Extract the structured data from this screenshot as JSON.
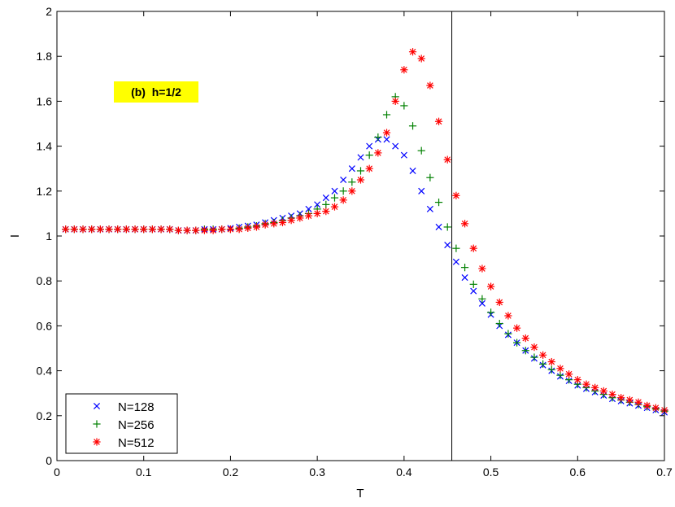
{
  "chart_data": {
    "type": "scatter",
    "title": "",
    "xlabel": "T",
    "ylabel": "I",
    "xlim": [
      0,
      0.7
    ],
    "ylim": [
      0,
      2
    ],
    "x_ticks": [
      "0",
      "0.1",
      "0.2",
      "0.3",
      "0.4",
      "0.5",
      "0.6",
      "0.7"
    ],
    "y_ticks": [
      "0",
      "0.2",
      "0.4",
      "0.6",
      "0.8",
      "1",
      "1.2",
      "1.4",
      "1.6",
      "1.8",
      "2"
    ],
    "grid": false,
    "legend_position": "bottom-left",
    "annotation": {
      "text": "(b)  h=1/2",
      "background": "#ffff00"
    },
    "vertical_line_x": 0.455,
    "series": [
      {
        "name": "N=128",
        "marker": "x",
        "color": "#0000ff",
        "x": [
          0.01,
          0.02,
          0.03,
          0.04,
          0.05,
          0.06,
          0.07,
          0.08,
          0.09,
          0.1,
          0.11,
          0.12,
          0.13,
          0.14,
          0.15,
          0.16,
          0.17,
          0.18,
          0.19,
          0.2,
          0.21,
          0.22,
          0.23,
          0.24,
          0.25,
          0.26,
          0.27,
          0.28,
          0.29,
          0.3,
          0.31,
          0.32,
          0.33,
          0.34,
          0.35,
          0.36,
          0.37,
          0.38,
          0.39,
          0.4,
          0.41,
          0.42,
          0.43,
          0.44,
          0.45,
          0.46,
          0.47,
          0.48,
          0.49,
          0.5,
          0.51,
          0.52,
          0.53,
          0.54,
          0.55,
          0.56,
          0.57,
          0.58,
          0.59,
          0.6,
          0.61,
          0.62,
          0.63,
          0.64,
          0.65,
          0.66,
          0.67,
          0.68,
          0.69,
          0.7
        ],
        "y": [
          1.03,
          1.03,
          1.03,
          1.03,
          1.03,
          1.03,
          1.03,
          1.03,
          1.03,
          1.03,
          1.03,
          1.03,
          1.03,
          1.025,
          1.025,
          1.025,
          1.03,
          1.03,
          1.03,
          1.035,
          1.04,
          1.045,
          1.05,
          1.06,
          1.07,
          1.08,
          1.09,
          1.1,
          1.12,
          1.14,
          1.17,
          1.2,
          1.25,
          1.3,
          1.35,
          1.4,
          1.43,
          1.43,
          1.4,
          1.36,
          1.29,
          1.2,
          1.12,
          1.04,
          0.96,
          0.885,
          0.815,
          0.755,
          0.7,
          0.65,
          0.6,
          0.56,
          0.525,
          0.49,
          0.455,
          0.425,
          0.4,
          0.375,
          0.355,
          0.335,
          0.32,
          0.305,
          0.29,
          0.275,
          0.265,
          0.255,
          0.245,
          0.235,
          0.225,
          0.215
        ]
      },
      {
        "name": "N=256",
        "marker": "+",
        "color": "#008000",
        "x": [
          0.01,
          0.02,
          0.03,
          0.04,
          0.05,
          0.06,
          0.07,
          0.08,
          0.09,
          0.1,
          0.11,
          0.12,
          0.13,
          0.14,
          0.15,
          0.16,
          0.17,
          0.18,
          0.19,
          0.2,
          0.21,
          0.22,
          0.23,
          0.24,
          0.25,
          0.26,
          0.27,
          0.28,
          0.29,
          0.3,
          0.31,
          0.32,
          0.33,
          0.34,
          0.35,
          0.36,
          0.37,
          0.38,
          0.39,
          0.4,
          0.41,
          0.42,
          0.43,
          0.44,
          0.45,
          0.46,
          0.47,
          0.48,
          0.49,
          0.5,
          0.51,
          0.52,
          0.53,
          0.54,
          0.55,
          0.56,
          0.57,
          0.58,
          0.59,
          0.6,
          0.61,
          0.62,
          0.63,
          0.64,
          0.65,
          0.66,
          0.67,
          0.68,
          0.69,
          0.7
        ],
        "y": [
          1.03,
          1.03,
          1.03,
          1.03,
          1.03,
          1.03,
          1.03,
          1.03,
          1.03,
          1.03,
          1.03,
          1.03,
          1.03,
          1.025,
          1.025,
          1.025,
          1.03,
          1.03,
          1.03,
          1.03,
          1.035,
          1.04,
          1.045,
          1.055,
          1.06,
          1.07,
          1.08,
          1.09,
          1.1,
          1.12,
          1.14,
          1.17,
          1.2,
          1.24,
          1.29,
          1.36,
          1.44,
          1.54,
          1.62,
          1.58,
          1.49,
          1.38,
          1.26,
          1.15,
          1.04,
          0.945,
          0.86,
          0.785,
          0.72,
          0.66,
          0.61,
          0.565,
          0.525,
          0.49,
          0.46,
          0.43,
          0.405,
          0.38,
          0.36,
          0.34,
          0.325,
          0.31,
          0.295,
          0.28,
          0.27,
          0.26,
          0.25,
          0.24,
          0.23,
          0.22
        ]
      },
      {
        "name": "N=512",
        "marker": "*",
        "color": "#ff0000",
        "x": [
          0.01,
          0.02,
          0.03,
          0.04,
          0.05,
          0.06,
          0.07,
          0.08,
          0.09,
          0.1,
          0.11,
          0.12,
          0.13,
          0.14,
          0.15,
          0.16,
          0.17,
          0.18,
          0.19,
          0.2,
          0.21,
          0.22,
          0.23,
          0.24,
          0.25,
          0.26,
          0.27,
          0.28,
          0.29,
          0.3,
          0.31,
          0.32,
          0.33,
          0.34,
          0.35,
          0.36,
          0.37,
          0.38,
          0.39,
          0.4,
          0.41,
          0.42,
          0.43,
          0.44,
          0.45,
          0.46,
          0.47,
          0.48,
          0.49,
          0.5,
          0.51,
          0.52,
          0.53,
          0.54,
          0.55,
          0.56,
          0.57,
          0.58,
          0.59,
          0.6,
          0.61,
          0.62,
          0.63,
          0.64,
          0.65,
          0.66,
          0.67,
          0.68,
          0.69,
          0.7
        ],
        "y": [
          1.03,
          1.03,
          1.03,
          1.03,
          1.03,
          1.03,
          1.03,
          1.03,
          1.03,
          1.03,
          1.03,
          1.03,
          1.03,
          1.025,
          1.025,
          1.025,
          1.025,
          1.025,
          1.03,
          1.03,
          1.03,
          1.035,
          1.04,
          1.05,
          1.055,
          1.06,
          1.07,
          1.08,
          1.09,
          1.1,
          1.11,
          1.13,
          1.16,
          1.2,
          1.25,
          1.3,
          1.37,
          1.46,
          1.6,
          1.74,
          1.82,
          1.79,
          1.67,
          1.51,
          1.34,
          1.18,
          1.055,
          0.945,
          0.855,
          0.775,
          0.705,
          0.645,
          0.59,
          0.545,
          0.505,
          0.47,
          0.44,
          0.41,
          0.385,
          0.36,
          0.34,
          0.325,
          0.31,
          0.295,
          0.28,
          0.27,
          0.26,
          0.245,
          0.235,
          0.225
        ]
      }
    ]
  }
}
